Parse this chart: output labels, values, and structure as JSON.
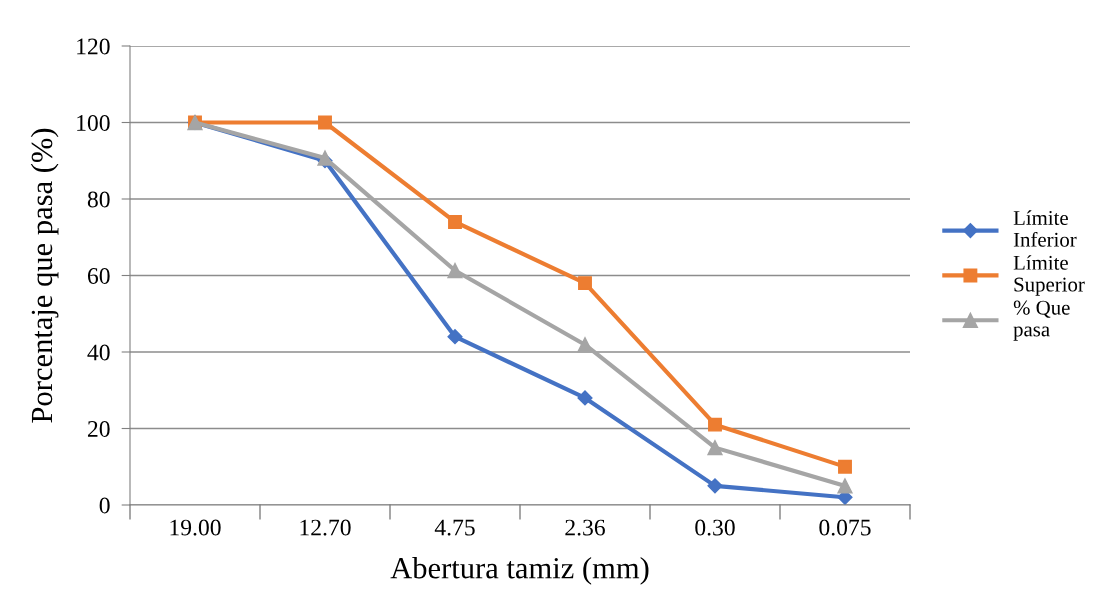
{
  "chart_data": {
    "type": "line",
    "xlabel": "Abertura tamiz (mm)",
    "ylabel": "Porcentaje que pasa (%)",
    "categories": [
      "19.00",
      "12.70",
      "4.75",
      "2.36",
      "0.30",
      "0.075"
    ],
    "series": [
      {
        "name": "Límite Inferior",
        "color": "#4472c4",
        "marker": "diamond",
        "values": [
          100,
          90,
          44,
          28,
          5,
          2
        ]
      },
      {
        "name": "Límite Superior",
        "color": "#ed7d31",
        "marker": "square",
        "values": [
          100,
          100,
          74,
          58,
          21,
          10
        ]
      },
      {
        "name": "% Que pasa",
        "color": "#a5a5a5",
        "marker": "triangle",
        "values": [
          100,
          90.7,
          61.3,
          41.9,
          15,
          5
        ]
      }
    ],
    "ylim": [
      0,
      120
    ],
    "yticks": [
      0,
      20,
      40,
      60,
      80,
      100,
      120
    ],
    "grid": "y",
    "legend": "right",
    "line_style": "solid"
  }
}
